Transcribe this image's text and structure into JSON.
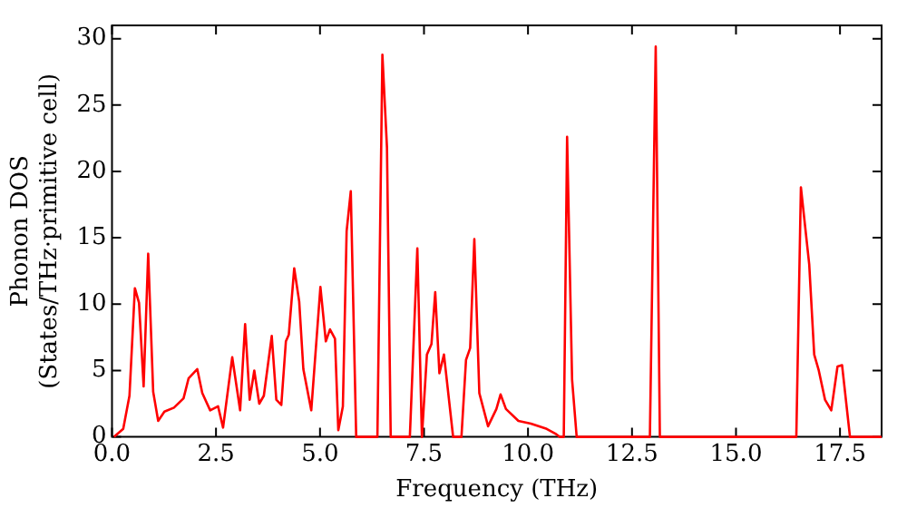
{
  "chart_data": {
    "type": "line",
    "xlabel": "Frequency (THz)",
    "ylabel": "Phonon DOS\n(States/THz·primitive cell)",
    "x": [
      0.05,
      0.27,
      0.42,
      0.55,
      0.65,
      0.76,
      0.87,
      0.99,
      1.11,
      1.26,
      1.49,
      1.72,
      1.84,
      2.05,
      2.17,
      2.36,
      2.55,
      2.67,
      2.89,
      3.08,
      3.2,
      3.31,
      3.42,
      3.54,
      3.65,
      3.84,
      3.95,
      4.07,
      4.18,
      4.25,
      4.38,
      4.5,
      4.6,
      4.79,
      5.01,
      5.14,
      5.24,
      5.36,
      5.44,
      5.55,
      5.64,
      5.74,
      5.87,
      6.38,
      6.5,
      6.61,
      6.7,
      7.16,
      7.34,
      7.45,
      7.57,
      7.68,
      7.77,
      7.87,
      7.98,
      8.2,
      8.4,
      8.51,
      8.61,
      8.71,
      8.83,
      9.04,
      9.24,
      9.34,
      9.47,
      9.77,
      10.07,
      10.45,
      10.68,
      10.76,
      10.86,
      10.94,
      11.06,
      11.17,
      12.93,
      13.07,
      13.17,
      16.45,
      16.56,
      16.76,
      16.88,
      16.99,
      17.14,
      17.29,
      17.44,
      17.55,
      17.74,
      18.5
    ],
    "series": [
      {
        "color": "#ff0000",
        "values": [
          0,
          0.6,
          3.1,
          11.2,
          10.1,
          3.8,
          13.8,
          3.4,
          1.2,
          1.9,
          2.2,
          2.9,
          4.4,
          5.1,
          3.3,
          2,
          2.3,
          0.7,
          6,
          2,
          8.5,
          2.8,
          5,
          2.5,
          3.1,
          7.6,
          2.8,
          2.4,
          7.2,
          7.7,
          12.7,
          10.2,
          5.1,
          2,
          11.3,
          7.2,
          8.1,
          7.4,
          0.5,
          2.3,
          15.5,
          18.5,
          0,
          0,
          28.8,
          21.8,
          0,
          0,
          14.2,
          0,
          6.2,
          7,
          10.9,
          4.8,
          6.2,
          0,
          0,
          5.8,
          6.7,
          14.9,
          3.3,
          0.8,
          2.1,
          3.2,
          2.1,
          1.2,
          1,
          0.6,
          0.2,
          0,
          0,
          22.6,
          4.3,
          0,
          0,
          29.4,
          0,
          0,
          18.8,
          13,
          6.2,
          5,
          2.8,
          2,
          5.3,
          5.4,
          0,
          0
        ]
      }
    ],
    "xlim": [
      0,
      18.5
    ],
    "xticks": [
      {
        "value": 0,
        "label": "0.0"
      },
      2.5,
      {
        "value": 5,
        "label": "5.0"
      },
      7.5,
      {
        "value": 10,
        "label": "10.0"
      },
      12.5,
      {
        "value": 15,
        "label": "15.0"
      },
      17.5
    ],
    "ylim": [
      0,
      31
    ],
    "yticks": [
      0,
      5,
      10,
      15,
      20,
      25,
      30
    ],
    "grid": false,
    "legend": false,
    "marker": "none",
    "line_style": "solid"
  }
}
